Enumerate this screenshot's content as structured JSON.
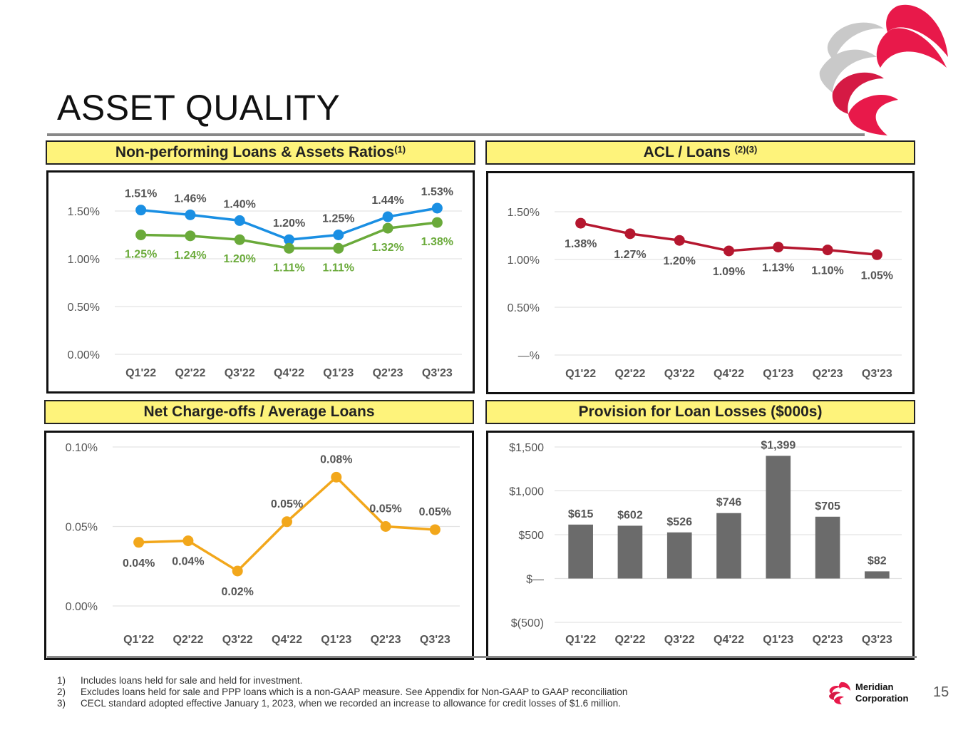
{
  "title": "ASSET QUALITY",
  "panels": {
    "npl": {
      "title": "Non-performing Loans & Assets Ratios",
      "sup": "(1)"
    },
    "acl": {
      "title": "ACL / Loans ",
      "sup": "(2)(3)"
    },
    "nco": {
      "title": "Net Charge-offs / Average Loans"
    },
    "prov": {
      "title": "Provision for Loan Losses ($000s)"
    }
  },
  "colors": {
    "blue": "#1a8fe3",
    "green": "#6aaa3a",
    "red": "#b5172f",
    "orange": "#f2a71b",
    "gray": "#6b6b6b"
  },
  "chart_data": [
    {
      "id": "npl",
      "type": "line",
      "title": "Non-performing Loans & Assets Ratios",
      "categories": [
        "Q1'22",
        "Q2'22",
        "Q3'22",
        "Q4'22",
        "Q1'23",
        "Q2'23",
        "Q3'23"
      ],
      "series": [
        {
          "name": "series-blue",
          "color": "#1a8fe3",
          "values": [
            1.51,
            1.46,
            1.4,
            1.2,
            1.25,
            1.44,
            1.53
          ],
          "labels": [
            "1.51%",
            "1.46%",
            "1.40%",
            "1.20%",
            "1.25%",
            "1.44%",
            "1.53%"
          ],
          "label_pos": "above",
          "label_color": "#555555"
        },
        {
          "name": "series-green",
          "color": "#6aaa3a",
          "values": [
            1.25,
            1.24,
            1.2,
            1.11,
            1.11,
            1.32,
            1.38
          ],
          "labels": [
            "1.25%",
            "1.24%",
            "1.20%",
            "1.11%",
            "1.11%",
            "1.32%",
            "1.38%"
          ],
          "label_pos": "below",
          "label_color": "#6aaa3a"
        }
      ],
      "yticks": [
        0,
        0.5,
        1.0,
        1.5
      ],
      "ytick_labels": [
        "0.00%",
        "0.50%",
        "1.00%",
        "1.50%"
      ],
      "ylim": [
        0,
        1.5
      ]
    },
    {
      "id": "acl",
      "type": "line",
      "title": "ACL / Loans",
      "categories": [
        "Q1'22",
        "Q2'22",
        "Q3'22",
        "Q4'22",
        "Q1'23",
        "Q2'23",
        "Q3'23"
      ],
      "series": [
        {
          "name": "series-red",
          "color": "#b5172f",
          "values": [
            1.38,
            1.27,
            1.2,
            1.09,
            1.13,
            1.1,
            1.05
          ],
          "labels": [
            "1.38%",
            "1.27%",
            "1.20%",
            "1.09%",
            "1.13%",
            "1.10%",
            "1.05%"
          ],
          "label_pos": "below",
          "label_color": "#555555"
        }
      ],
      "yticks": [
        0,
        0.5,
        1.0,
        1.5
      ],
      "ytick_labels": [
        "—%",
        "0.50%",
        "1.00%",
        "1.50%"
      ],
      "ylim": [
        0,
        1.5
      ]
    },
    {
      "id": "nco",
      "type": "line",
      "title": "Net Charge-offs / Average Loans",
      "categories": [
        "Q1'22",
        "Q2'22",
        "Q3'22",
        "Q4'22",
        "Q1'23",
        "Q2'23",
        "Q3'23"
      ],
      "series": [
        {
          "name": "series-orange",
          "color": "#f2a71b",
          "values": [
            0.04,
            0.041,
            0.022,
            0.053,
            0.081,
            0.05,
            0.048
          ],
          "labels": [
            "0.04%",
            "0.04%",
            "0.02%",
            "0.05%",
            "0.08%",
            "0.05%",
            "0.05%"
          ],
          "label_pos_each": [
            "below",
            "below",
            "below",
            "above",
            "above",
            "above",
            "above"
          ],
          "label_color": "#555555"
        }
      ],
      "yticks": [
        0,
        0.05,
        0.1
      ],
      "ytick_labels": [
        "0.00%",
        "0.05%",
        "0.10%"
      ],
      "ylim": [
        0,
        0.1
      ]
    },
    {
      "id": "prov",
      "type": "bar",
      "title": "Provision for Loan Losses ($000s)",
      "categories": [
        "Q1'22",
        "Q2'22",
        "Q3'22",
        "Q4'22",
        "Q1'23",
        "Q2'23",
        "Q3'23"
      ],
      "values": [
        615,
        602,
        526,
        746,
        1399,
        705,
        82
      ],
      "labels": [
        "$615",
        "$602",
        "$526",
        "$746",
        "$1,399",
        "$705",
        "$82"
      ],
      "color": "#6b6b6b",
      "yticks": [
        -500,
        0,
        500,
        1000,
        1500
      ],
      "ytick_labels": [
        "$(500)",
        "$—",
        "$500",
        "$1,000",
        "$1,500"
      ],
      "ylim": [
        -500,
        1500
      ]
    }
  ],
  "footnotes": [
    {
      "num": "1)",
      "text": "Includes loans held for sale and held for investment."
    },
    {
      "num": "2)",
      "text": "Excludes loans held for sale and PPP loans which is a non-GAAP measure. See Appendix for Non-GAAP to GAAP reconciliation"
    },
    {
      "num": "3)",
      "text": "CECL standard adopted effective January 1, 2023, when we recorded an increase to allowance for credit losses of $1.6 million."
    }
  ],
  "brand": {
    "line1": "Meridian",
    "line2": "Corporation"
  },
  "page_number": "15"
}
